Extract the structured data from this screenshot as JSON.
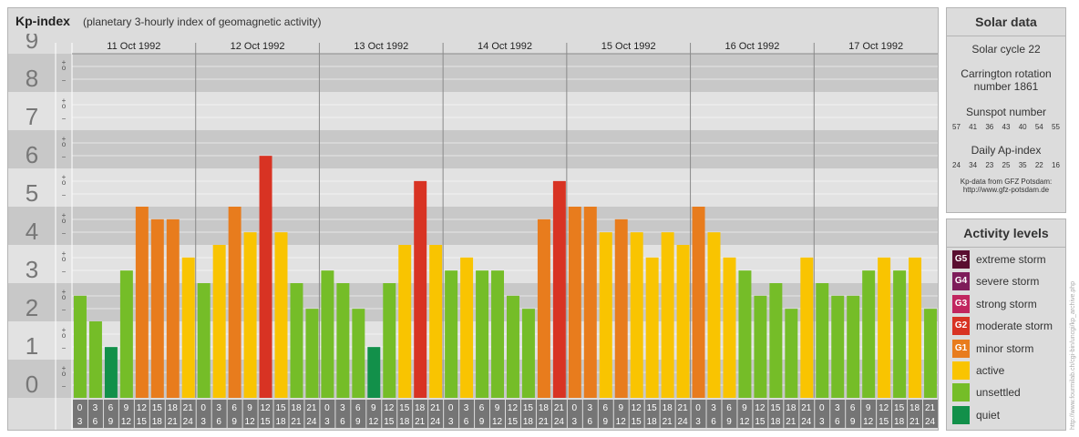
{
  "header": {
    "title": "Kp-index",
    "subtitle": "(planetary 3-hourly index of geomagnetic activity)"
  },
  "chart_data": {
    "type": "bar",
    "title": "Kp-index",
    "subtitle": "(planetary 3-hourly index of geomagnetic activity)",
    "ylim": [
      0,
      9
    ],
    "y_ticks": [
      "0",
      "1",
      "2",
      "3",
      "4",
      "5",
      "6",
      "7",
      "8",
      "9"
    ],
    "minor_tick_labels": [
      "+",
      "o",
      "−"
    ],
    "days": [
      "11 Oct 1992",
      "12 Oct 1992",
      "13 Oct 1992",
      "14 Oct 1992",
      "15 Oct 1992",
      "16 Oct 1992",
      "17 Oct 1992"
    ],
    "intervals": [
      [
        "0",
        "3"
      ],
      [
        "3",
        "6"
      ],
      [
        "6",
        "9"
      ],
      [
        "9",
        "12"
      ],
      [
        "12",
        "15"
      ],
      [
        "15",
        "18"
      ],
      [
        "18",
        "21"
      ],
      [
        "21",
        "24"
      ]
    ],
    "values": [
      [
        2.67,
        2.0,
        1.33,
        3.33,
        5.0,
        4.67,
        4.67,
        3.67
      ],
      [
        3.0,
        4.0,
        5.0,
        4.33,
        6.33,
        4.33,
        3.0,
        2.33
      ],
      [
        3.33,
        3.0,
        2.33,
        1.33,
        3.0,
        4.0,
        5.67,
        4.0
      ],
      [
        3.33,
        3.67,
        3.33,
        3.33,
        2.67,
        2.33,
        4.67,
        5.67
      ],
      [
        5.0,
        5.0,
        4.33,
        4.67,
        4.33,
        3.67,
        4.33,
        4.0
      ],
      [
        5.0,
        4.33,
        3.67,
        3.33,
        2.67,
        3.0,
        2.33,
        3.67
      ],
      [
        3.0,
        2.67,
        2.67,
        3.33,
        3.67,
        3.33,
        3.67,
        2.33
      ]
    ]
  },
  "colors": {
    "quiet": "#12904a",
    "unsettled": "#75bd28",
    "active": "#f9c401",
    "minor": "#e87c1d",
    "moderate": "#d83323",
    "strong": "#c1265f",
    "severe": "#7e1c5a",
    "extreme": "#5a0e30",
    "band_dark": "#c8c8c8",
    "band_light": "#e2e2e2",
    "label_bg": "#757575"
  },
  "solar": {
    "heading": "Solar data",
    "cycle": "Solar cycle 22",
    "carrington_line1": "Carrington rotation",
    "carrington_line2": "number 1861",
    "sunspot_label": "Sunspot number",
    "sunspot_values": [
      "57",
      "41",
      "36",
      "43",
      "40",
      "54",
      "55"
    ],
    "ap_label": "Daily Ap-index",
    "ap_values": [
      "24",
      "34",
      "23",
      "25",
      "35",
      "22",
      "16"
    ],
    "source_line1": "Kp-data from GFZ Potsdam:",
    "source_line2": "http://www.gfz-potsdam.de"
  },
  "activity": {
    "heading": "Activity levels",
    "levels": [
      {
        "badge": "G5",
        "label": "extreme storm",
        "color": "#5a0e30"
      },
      {
        "badge": "G4",
        "label": "severe storm",
        "color": "#7e1c5a"
      },
      {
        "badge": "G3",
        "label": "strong storm",
        "color": "#c1265f"
      },
      {
        "badge": "G2",
        "label": "moderate storm",
        "color": "#d83323"
      },
      {
        "badge": "G1",
        "label": "minor storm",
        "color": "#e87c1d"
      },
      {
        "badge": "",
        "label": "active",
        "color": "#f9c401"
      },
      {
        "badge": "",
        "label": "unsettled",
        "color": "#75bd28"
      },
      {
        "badge": "",
        "label": "quiet",
        "color": "#12904a"
      }
    ]
  },
  "watermark": "http://www.fourmilab.ch/cgi-bin/uncgi/kp_archive.php"
}
